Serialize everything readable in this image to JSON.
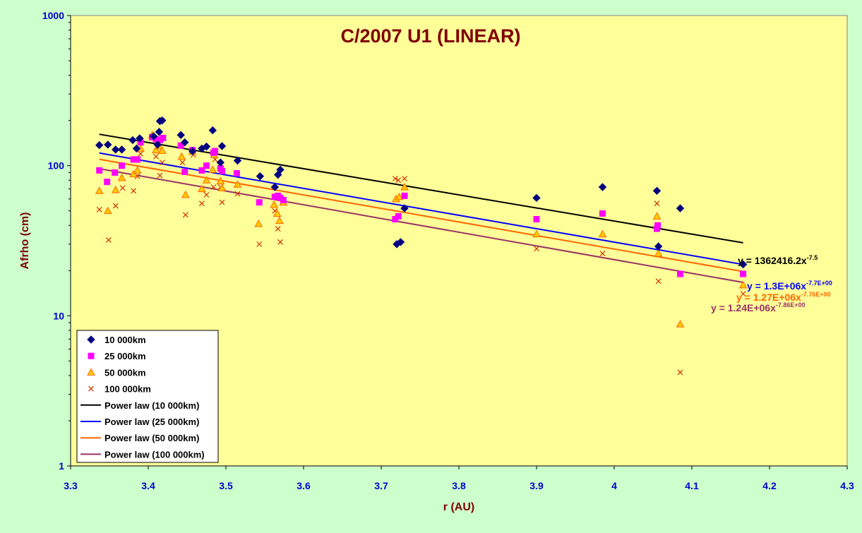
{
  "colors": {
    "background": "#ccffcc",
    "plot_area": "#ffff99",
    "axis_tick_labels": "#0000cc",
    "axis_titles": "#800000",
    "title": "#800000",
    "series_10000": "#000080",
    "series_25000": "#ff00ff",
    "series_50000_fill": "#ffcc00",
    "series_50000_edge": "#ff6600",
    "series_100000": "#cc3300",
    "fit_10000": "#000000",
    "fit_25000": "#0000ff",
    "fit_50000": "#ff6600",
    "fit_100000": "#993366"
  },
  "chart_data": {
    "type": "scatter",
    "title": "C/2007 U1 (LINEAR)",
    "xlabel": "r (AU)",
    "ylabel": "Afrho (cm)",
    "xlim": [
      3.3,
      4.3
    ],
    "ylim": [
      1,
      1000
    ],
    "yscale": "log",
    "grid": false,
    "legend_position": "bottom-left",
    "x_ticks": [
      "3.3",
      "3.4",
      "3.5",
      "3.6",
      "3.7",
      "3.8",
      "3.9",
      "4",
      "4.1",
      "4.2",
      "4.3"
    ],
    "y_ticks": [
      "1",
      "10",
      "100",
      "1000"
    ],
    "series": [
      {
        "name": "10 000km",
        "marker": "diamond",
        "color": "#000080",
        "points": [
          [
            3.337,
            137
          ],
          [
            3.348,
            138
          ],
          [
            3.358,
            128
          ],
          [
            3.366,
            128
          ],
          [
            3.38,
            148
          ],
          [
            3.385,
            130
          ],
          [
            3.389,
            152
          ],
          [
            3.407,
            157
          ],
          [
            3.412,
            138
          ],
          [
            3.414,
            168
          ],
          [
            3.415,
            198
          ],
          [
            3.418,
            200
          ],
          [
            3.442,
            160
          ],
          [
            3.447,
            143
          ],
          [
            3.457,
            125
          ],
          [
            3.469,
            130
          ],
          [
            3.475,
            134
          ],
          [
            3.483,
            172
          ],
          [
            3.493,
            105
          ],
          [
            3.495,
            135
          ],
          [
            3.515,
            108
          ],
          [
            3.544,
            85
          ],
          [
            3.563,
            72
          ],
          [
            3.567,
            87
          ],
          [
            3.57,
            94
          ],
          [
            3.72,
            30
          ],
          [
            3.725,
            31
          ],
          [
            3.73,
            52
          ],
          [
            3.9,
            61
          ],
          [
            3.985,
            72
          ],
          [
            4.055,
            68
          ],
          [
            4.057,
            29
          ],
          [
            4.085,
            52
          ],
          [
            4.166,
            22
          ]
        ]
      },
      {
        "name": "25 000km",
        "marker": "square",
        "color": "#ff00ff",
        "points": [
          [
            3.337,
            93
          ],
          [
            3.347,
            78
          ],
          [
            3.357,
            90
          ],
          [
            3.366,
            100
          ],
          [
            3.381,
            110
          ],
          [
            3.386,
            110
          ],
          [
            3.39,
            143
          ],
          [
            3.405,
            155
          ],
          [
            3.41,
            150
          ],
          [
            3.415,
            148
          ],
          [
            3.419,
            153
          ],
          [
            3.442,
            136
          ],
          [
            3.447,
            91
          ],
          [
            3.457,
            127
          ],
          [
            3.469,
            93
          ],
          [
            3.475,
            100
          ],
          [
            3.484,
            122
          ],
          [
            3.486,
            125
          ],
          [
            3.493,
            96
          ],
          [
            3.495,
            92
          ],
          [
            3.514,
            89
          ],
          [
            3.543,
            57
          ],
          [
            3.563,
            62
          ],
          [
            3.567,
            63
          ],
          [
            3.57,
            61
          ],
          [
            3.574,
            59
          ],
          [
            3.718,
            44
          ],
          [
            3.722,
            46
          ],
          [
            3.73,
            63
          ],
          [
            3.9,
            44
          ],
          [
            3.985,
            48
          ],
          [
            4.055,
            38
          ],
          [
            4.056,
            40
          ],
          [
            4.085,
            19
          ],
          [
            4.166,
            19
          ]
        ]
      },
      {
        "name": "50 000km",
        "marker": "triangle",
        "color": "#ffcc00",
        "points": [
          [
            3.337,
            68
          ],
          [
            3.348,
            50
          ],
          [
            3.358,
            69
          ],
          [
            3.366,
            83
          ],
          [
            3.381,
            88
          ],
          [
            3.386,
            93
          ],
          [
            3.39,
            130
          ],
          [
            3.405,
            160
          ],
          [
            3.41,
            127
          ],
          [
            3.414,
            135
          ],
          [
            3.418,
            126
          ],
          [
            3.443,
            115
          ],
          [
            3.448,
            64
          ],
          [
            3.457,
            124
          ],
          [
            3.469,
            70
          ],
          [
            3.475,
            80
          ],
          [
            3.483,
            94
          ],
          [
            3.485,
            118
          ],
          [
            3.493,
            79
          ],
          [
            3.495,
            71
          ],
          [
            3.515,
            75
          ],
          [
            3.542,
            41
          ],
          [
            3.562,
            55
          ],
          [
            3.566,
            48
          ],
          [
            3.569,
            43
          ],
          [
            3.574,
            57
          ],
          [
            3.719,
            60
          ],
          [
            3.723,
            62
          ],
          [
            3.73,
            72
          ],
          [
            3.9,
            35
          ],
          [
            3.985,
            35
          ],
          [
            4.055,
            46
          ],
          [
            4.057,
            26
          ],
          [
            4.085,
            8.8
          ],
          [
            4.166,
            16
          ]
        ]
      },
      {
        "name": "100 000km",
        "marker": "x",
        "color": "#cc3300",
        "points": [
          [
            3.337,
            51
          ],
          [
            3.349,
            32
          ],
          [
            3.358,
            54
          ],
          [
            3.367,
            71
          ],
          [
            3.381,
            68
          ],
          [
            3.386,
            85
          ],
          [
            3.39,
            120
          ],
          [
            3.405,
            153
          ],
          [
            3.41,
            115
          ],
          [
            3.415,
            86
          ],
          [
            3.418,
            105
          ],
          [
            3.444,
            105
          ],
          [
            3.448,
            47
          ],
          [
            3.458,
            118
          ],
          [
            3.469,
            56
          ],
          [
            3.475,
            64
          ],
          [
            3.484,
            72
          ],
          [
            3.486,
            110
          ],
          [
            3.493,
            72
          ],
          [
            3.495,
            57
          ],
          [
            3.515,
            65
          ],
          [
            3.543,
            30
          ],
          [
            3.563,
            50
          ],
          [
            3.567,
            38
          ],
          [
            3.57,
            31
          ],
          [
            3.574,
            57
          ],
          [
            3.718,
            82
          ],
          [
            3.722,
            80
          ],
          [
            3.73,
            82
          ],
          [
            3.9,
            28
          ],
          [
            3.985,
            26
          ],
          [
            4.055,
            56
          ],
          [
            4.057,
            17
          ],
          [
            4.085,
            4.2
          ],
          [
            4.166,
            14
          ]
        ]
      }
    ],
    "trendlines": [
      {
        "name": "Power law (10 000km)",
        "color": "#000000",
        "coef": 1362416.2,
        "exp": -7.5,
        "x_range": [
          3.337,
          4.166
        ],
        "equation": {
          "base": "y = 1362416.2x",
          "sup": "-7.5"
        }
      },
      {
        "name": "Power law (25 000km)",
        "color": "#0000ff",
        "coef": 1300000,
        "exp": -7.7,
        "x_range": [
          3.337,
          4.166
        ],
        "equation": {
          "base": "y = 1.3E+06x",
          "sup": "-7.7E+00"
        }
      },
      {
        "name": "Power law (50 000km)",
        "color": "#ff6600",
        "coef": 1270000,
        "exp": -7.76,
        "x_range": [
          3.337,
          4.166
        ],
        "equation": {
          "base": "y = 1.27E+06x",
          "sup": "-7.76E+00"
        }
      },
      {
        "name": "Power law (100 000km)",
        "color": "#993366",
        "coef": 1240000,
        "exp": -7.86,
        "x_range": [
          3.337,
          4.166
        ],
        "equation": {
          "base": "y = 1.24E+06x",
          "sup": "-7.86E+00"
        }
      }
    ]
  }
}
